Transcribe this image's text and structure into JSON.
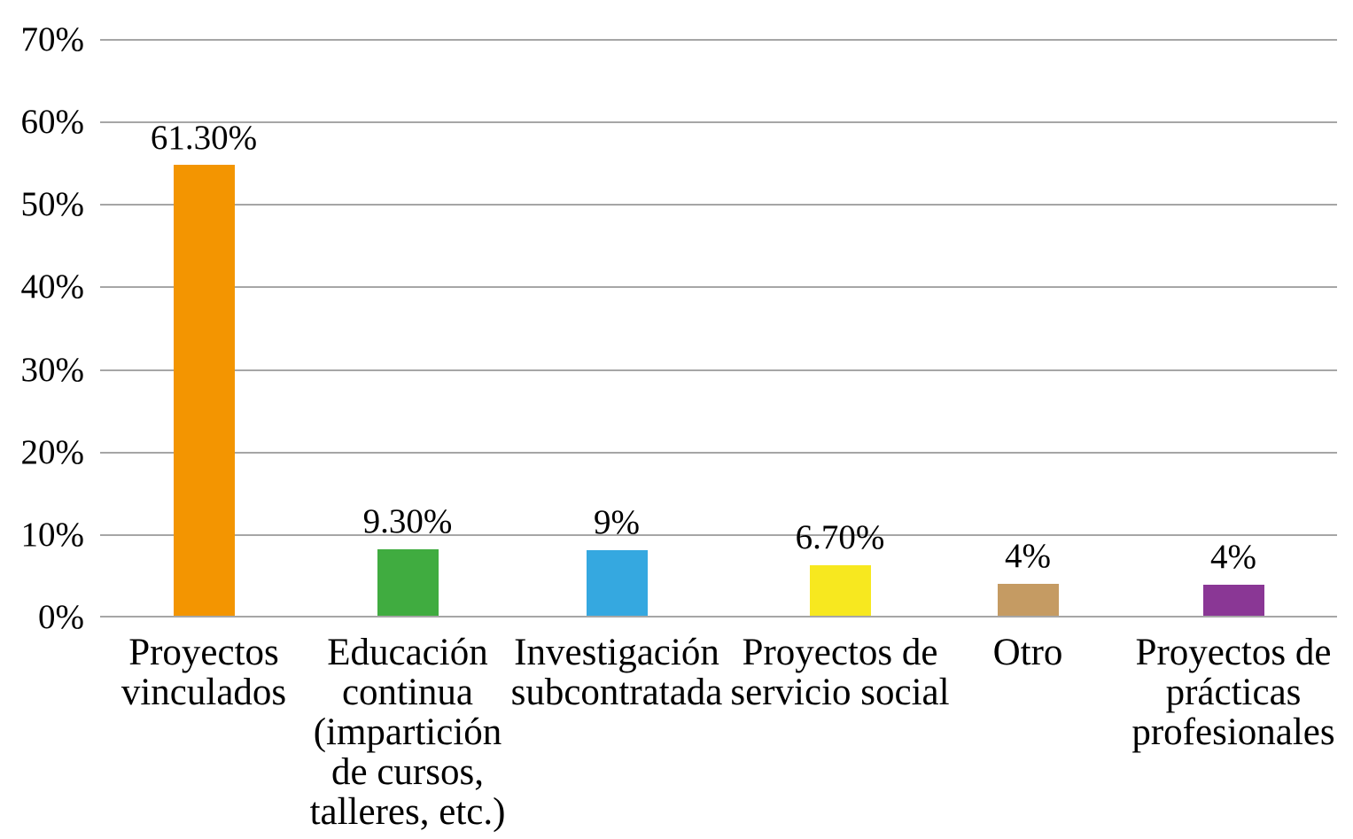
{
  "chart_data": {
    "type": "bar",
    "title": "",
    "xlabel": "",
    "ylabel": "",
    "categories": [
      "Proyectos vinculados",
      "Educación continua (impartición de cursos, talleres, etc.)",
      "Investigación subcontratada",
      "Proyectos de servicio social",
      "Otro",
      "Proyectos de prácticas profesionales"
    ],
    "category_label_text": [
      "Proyectos\nvinculados",
      "Educación\ncontinua\n(impartición\nde cursos,\ntalleres, etc.)",
      "Investigación\nsubcontratada",
      "Proyectos de\nservicio social",
      "Otro",
      "Proyectos de\nprácticas\nprofesionales"
    ],
    "values": [
      61.3,
      9.3,
      9,
      6.7,
      4,
      4
    ],
    "value_labels": [
      "61.30%",
      "9.30%",
      "9%",
      "6.70%",
      "4%",
      "4%"
    ],
    "bar_heights_as_drawn_pct": [
      54.6,
      8.1,
      8.0,
      6.1,
      3.9,
      3.8
    ],
    "bar_colors": [
      "#F39501",
      "#40AC40",
      "#35A8E0",
      "#F7E81F",
      "#C59B63",
      "#8A3795"
    ],
    "y_axis": {
      "min": 0,
      "max": 70,
      "step": 10,
      "tick_labels": [
        "0%",
        "10%",
        "20%",
        "30%",
        "40%",
        "50%",
        "60%",
        "70%"
      ]
    },
    "grid": true,
    "legend": "none",
    "colors": {
      "gridline": "#A6A6A6",
      "axis_line": "#A6A6A6",
      "text": "#000000",
      "background": "#FFFFFF"
    }
  }
}
